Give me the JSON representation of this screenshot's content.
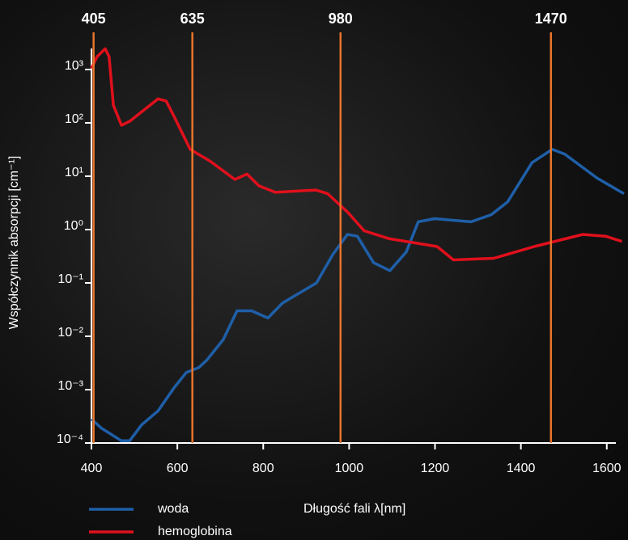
{
  "chart_data": {
    "type": "line",
    "xlabel": "Długość fali λ[nm]",
    "ylabel": "Współczynnik absorpcji [cm⁻¹]",
    "xlim": [
      400,
      1640
    ],
    "xticks": [
      400,
      600,
      800,
      1000,
      1200,
      1400,
      1600
    ],
    "ylim": [
      0.0001,
      10000
    ],
    "log_y": true,
    "yticks": [
      {
        "value": 0.0001,
        "label": "10⁻⁴"
      },
      {
        "value": 0.001,
        "label": "10⁻³"
      },
      {
        "value": 0.01,
        "label": "10⁻²"
      },
      {
        "value": 0.1,
        "label": "10⁻¹"
      },
      {
        "value": 1,
        "label": "10⁰"
      },
      {
        "value": 10,
        "label": "10¹"
      },
      {
        "value": 100,
        "label": "10²"
      },
      {
        "value": 1000,
        "label": "10³"
      }
    ],
    "markers": [
      405,
      635,
      980,
      1470
    ],
    "marker_color": "#e8742a",
    "series": [
      {
        "name": "woda",
        "color": "#1f5fa8",
        "x": [
          400,
          423,
          470,
          489,
          517,
          555,
          593,
          621,
          650,
          669,
          707,
          739,
          773,
          811,
          845,
          924,
          962,
          996,
          1019,
          1057,
          1095,
          1133,
          1161,
          1199,
          1284,
          1331,
          1369,
          1398,
          1426,
          1473,
          1502,
          1577,
          1640
        ],
        "values": [
          0.00028,
          0.00019,
          0.00011,
          0.00011,
          0.00022,
          0.0004,
          0.0011,
          0.0021,
          0.0026,
          0.0036,
          0.0087,
          0.03,
          0.03,
          0.022,
          0.042,
          0.1,
          0.34,
          0.81,
          0.75,
          0.24,
          0.17,
          0.38,
          1.4,
          1.6,
          1.4,
          1.9,
          3.3,
          7.8,
          18,
          32,
          26,
          9.3,
          4.7
        ]
      },
      {
        "name": "hemoglobina",
        "color": "#e0101c",
        "x": [
          400,
          413,
          432,
          441,
          451,
          470,
          489,
          555,
          574,
          593,
          630,
          677,
          734,
          762,
          790,
          828,
          922,
          950,
          997,
          1035,
          1092,
          1205,
          1243,
          1337,
          1431,
          1544,
          1597,
          1635
        ],
        "values": [
          1050,
          1740,
          2450,
          1740,
          214,
          90,
          107,
          282,
          257,
          129,
          32,
          19,
          8.7,
          11,
          6.6,
          5,
          5.5,
          4.7,
          2.1,
          0.95,
          0.68,
          0.48,
          0.27,
          0.29,
          0.48,
          0.81,
          0.75,
          0.6
        ]
      }
    ]
  }
}
